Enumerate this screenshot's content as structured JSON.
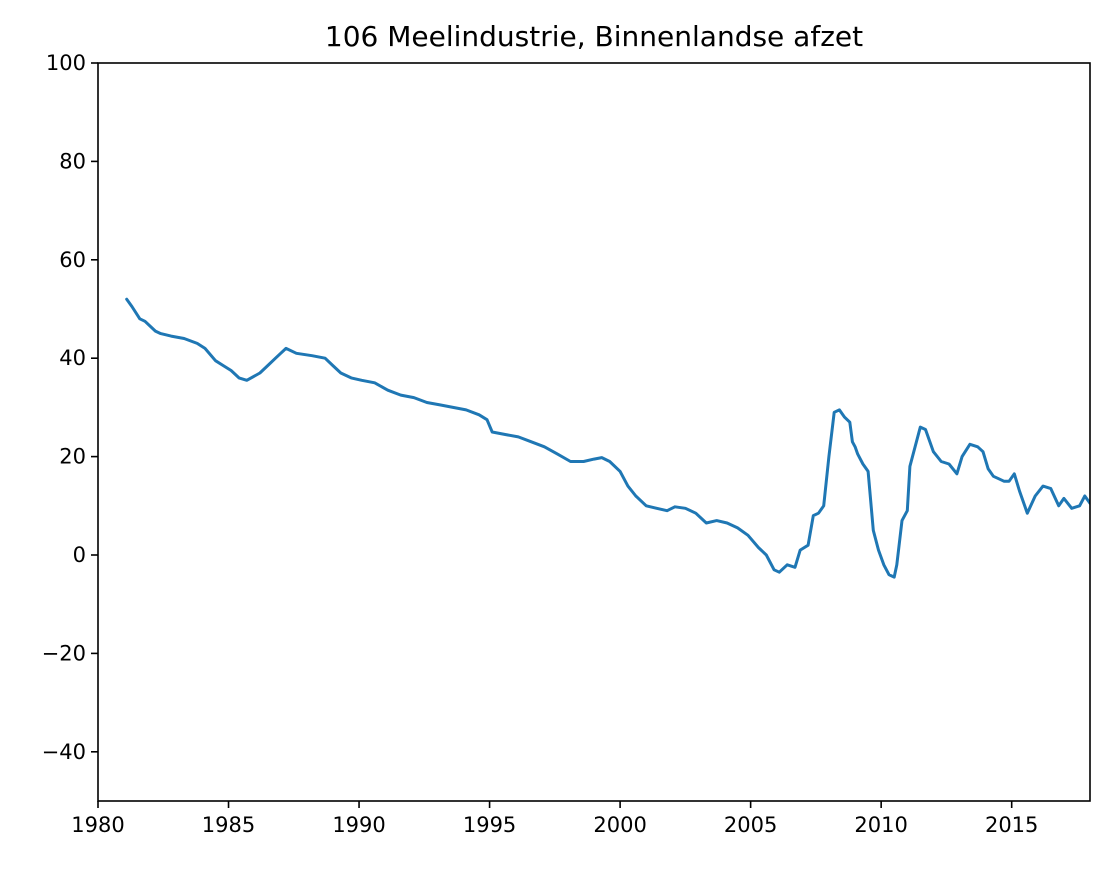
{
  "chart_data": {
    "type": "line",
    "title": "106 Meelindustrie, Binnenlandse afzet",
    "xlabel": "",
    "ylabel": "",
    "xlim": [
      1980,
      2018
    ],
    "ylim": [
      -50,
      100
    ],
    "xticks": [
      1980,
      1985,
      1990,
      1995,
      2000,
      2005,
      2010,
      2015
    ],
    "yticks": [
      -40,
      -20,
      0,
      20,
      40,
      60,
      80,
      100
    ],
    "grid": false,
    "colors": {
      "series": "#1f77b4"
    },
    "series": [
      {
        "x": [
          1981.1,
          1981.3,
          1981.6,
          1981.8,
          1982.2,
          1982.4,
          1982.8,
          1983.3,
          1983.8,
          1984.1,
          1984.5,
          1984.8,
          1985.1,
          1985.4,
          1985.7,
          1986.2,
          1986.5,
          1986.8,
          1987.0,
          1987.2,
          1987.6,
          1988.2,
          1988.7,
          1989.0,
          1989.3,
          1989.7,
          1990.1,
          1990.6,
          1991.1,
          1991.6,
          1992.1,
          1992.6,
          1993.1,
          1993.6,
          1994.1,
          1994.6,
          1994.9,
          1995.1,
          1995.6,
          1996.1,
          1996.6,
          1997.1,
          1997.6,
          1998.1,
          1998.6,
          1999.0,
          1999.3,
          1999.6,
          2000.0,
          2000.3,
          2000.6,
          2001.0,
          2001.4,
          2001.8,
          2002.1,
          2002.5,
          2002.9,
          2003.3,
          2003.7,
          2004.1,
          2004.5,
          2004.9,
          2005.3,
          2005.6,
          2005.9,
          2006.1,
          2006.4,
          2006.7,
          2006.9,
          2007.2,
          2007.4,
          2007.6,
          2007.8,
          2008.0,
          2008.2,
          2008.4,
          2008.6,
          2008.8,
          2008.9,
          2009.0,
          2009.1,
          2009.3,
          2009.5,
          2009.7,
          2009.9,
          2010.1,
          2010.3,
          2010.5,
          2010.6,
          2010.8,
          2011.0,
          2011.1,
          2011.3,
          2011.5,
          2011.7,
          2012.0,
          2012.3,
          2012.6,
          2012.9,
          2013.1,
          2013.4,
          2013.7,
          2013.9,
          2014.1,
          2014.3,
          2014.5,
          2014.7,
          2014.9,
          2015.1,
          2015.3,
          2015.6,
          2015.9,
          2016.2,
          2016.5,
          2016.8,
          2017.0,
          2017.3,
          2017.6,
          2017.8,
          2018.0
        ],
        "values": [
          52,
          50.5,
          48,
          47.5,
          45.5,
          45,
          44.5,
          44,
          43,
          42,
          39.5,
          38.5,
          37.5,
          36,
          35.5,
          37,
          38.5,
          40,
          41,
          42,
          41,
          40.5,
          40,
          38.5,
          37,
          36,
          35.5,
          35,
          33.5,
          32.5,
          32,
          31,
          30.5,
          30,
          29.5,
          28.5,
          27.5,
          25,
          24.5,
          24,
          23,
          22,
          20.5,
          19,
          19,
          19.5,
          19.8,
          19,
          17,
          14,
          12,
          10,
          9.5,
          9,
          9.8,
          9.5,
          8.5,
          6.5,
          7,
          6.5,
          5.5,
          4,
          1.5,
          0,
          -3,
          -3.5,
          -2,
          -2.5,
          1,
          2,
          8,
          8.5,
          10,
          20,
          29,
          29.5,
          28,
          27,
          23,
          22,
          20.5,
          18.5,
          17,
          5,
          1,
          -2,
          -4,
          -4.5,
          -2,
          7,
          9,
          18,
          22,
          26,
          25.5,
          21,
          19,
          18.5,
          16.5,
          20,
          22.5,
          22,
          21,
          17.5,
          16,
          15.5,
          15,
          15,
          16.5,
          13,
          8.5,
          12,
          14,
          13.5,
          10,
          11.5,
          9.5,
          10,
          12,
          10.5
        ]
      }
    ]
  }
}
